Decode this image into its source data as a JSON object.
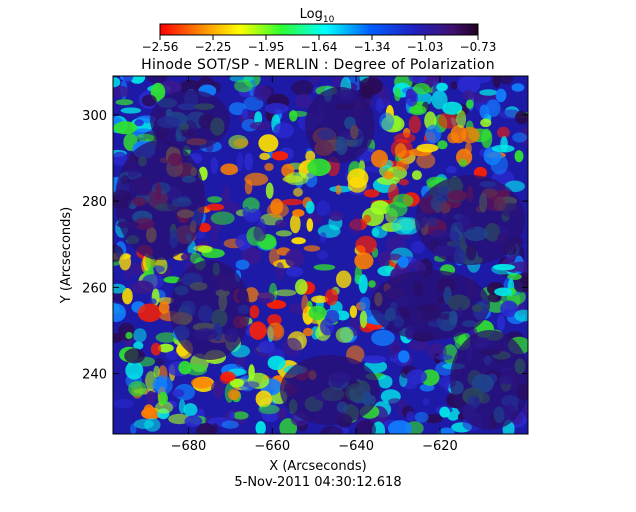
{
  "chart_data": {
    "type": "heatmap",
    "title": "Hinode SOT/SP - MERLIN : Degree of Polarization",
    "footer": "5-Nov-2011 04:30:12.618",
    "xlabel": "X (Arcseconds)",
    "ylabel": "Y (Arcseconds)",
    "xlim": [
      -698,
      -599
    ],
    "ylim": [
      226,
      309
    ],
    "xticks": [
      -680,
      -660,
      -640,
      -620
    ],
    "yticks": [
      240,
      260,
      280,
      300
    ],
    "colorbar": {
      "label_base": "Log",
      "label_sub": "10",
      "ticks": [
        "-2.56",
        "-2.25",
        "-1.95",
        "-1.64",
        "-1.34",
        "-1.03",
        "-0.73"
      ],
      "vmin": -2.56,
      "vmax": -0.73,
      "colormap": "rainbow (red low -> dark purple high)"
    },
    "note": "High-polarization (dark blue/purple) network cells across the field with low-polarization (red/yellow) lanes in the center and upper right."
  }
}
